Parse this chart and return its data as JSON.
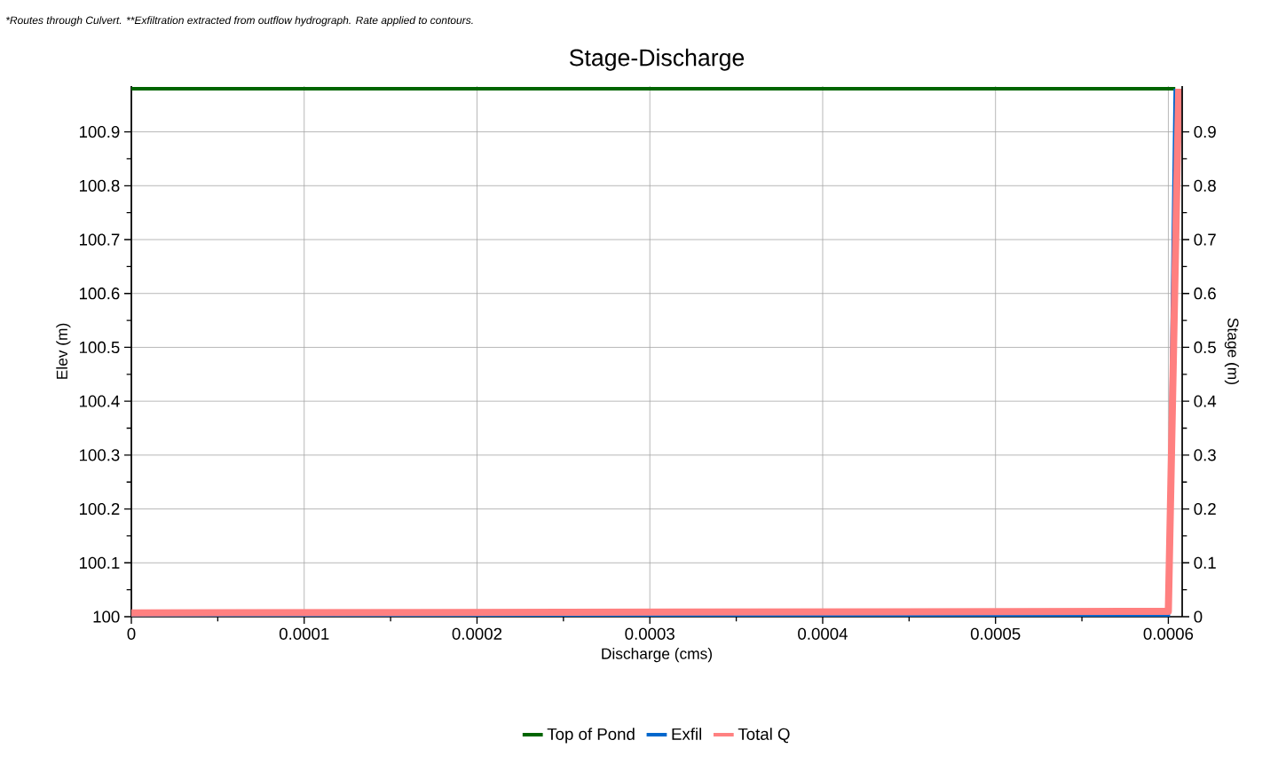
{
  "chart_data": {
    "type": "line",
    "title": "Stage-Discharge",
    "xlabel": "Discharge (cms)",
    "ylabel": "Elev (m)",
    "y2label": "Stage (m)",
    "annotations": [
      "*Routes through Culvert. **Exfiltration extracted from outflow hydrograph. Rate applied to contours."
    ],
    "series": [
      {
        "name": "Top of Pond",
        "color": "#006400",
        "x": [
          0,
          0.000604
        ],
        "values": [
          100.98,
          100.98
        ]
      },
      {
        "name": "Exfil",
        "color": "#0066cc",
        "x": [
          0,
          0.0006,
          0.000604
        ],
        "values": [
          100.002,
          100.002,
          100.98
        ]
      },
      {
        "name": "Total Q",
        "color": "#ff8080",
        "x": [
          0,
          0.0006,
          0.000606
        ],
        "values": [
          100.007,
          100.01,
          100.98
        ]
      }
    ],
    "xlim": [
      0,
      0.000608
    ],
    "ylim": [
      100,
      100.985
    ],
    "y2lim": [
      0,
      0.985
    ],
    "xticks": [
      0,
      0.0001,
      0.0002,
      0.0003,
      0.0004,
      0.0005,
      0.0006
    ],
    "yticks": [
      100,
      100.1,
      100.2,
      100.3,
      100.4,
      100.5,
      100.6,
      100.7,
      100.8,
      100.9
    ],
    "y2ticks": [
      0,
      0.1,
      0.2,
      0.3,
      0.4,
      0.5,
      0.6,
      0.7,
      0.8,
      0.9
    ],
    "grid": true,
    "legend": "bottom",
    "line_style": "solid",
    "marker": "none"
  }
}
